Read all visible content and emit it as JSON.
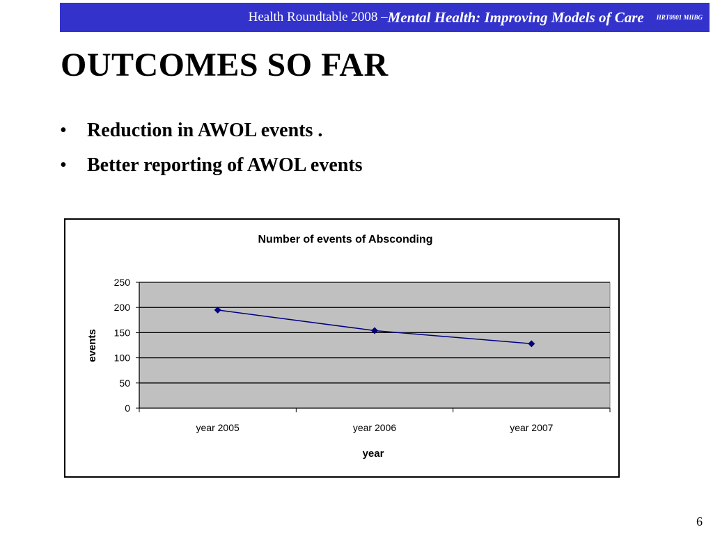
{
  "header": {
    "plain_text": "Health Roundtable  2008 – ",
    "emphasis_text": "Mental Health:  Improving Models of Care",
    "code": "HRT0801 MHBG",
    "bar_color": "#3333cc"
  },
  "slide": {
    "title": "OUTCOMES SO FAR",
    "bullets": [
      "Reduction in AWOL events .",
      "Better reporting of AWOL events"
    ],
    "page_number": "6"
  },
  "chart_data": {
    "type": "line",
    "title": "Number of events of  Absconding",
    "xlabel": "year",
    "ylabel": "events",
    "categories": [
      "year 2005",
      "year 2006",
      "year 2007"
    ],
    "series": [
      {
        "values": [
          195,
          154,
          128
        ],
        "color": "#000080",
        "marker": "diamond"
      }
    ],
    "ylim": [
      0,
      250
    ],
    "yticks": [
      0,
      50,
      100,
      150,
      200,
      250
    ],
    "grid": true,
    "plot_background": "#c0c0c0",
    "legend": "none"
  }
}
